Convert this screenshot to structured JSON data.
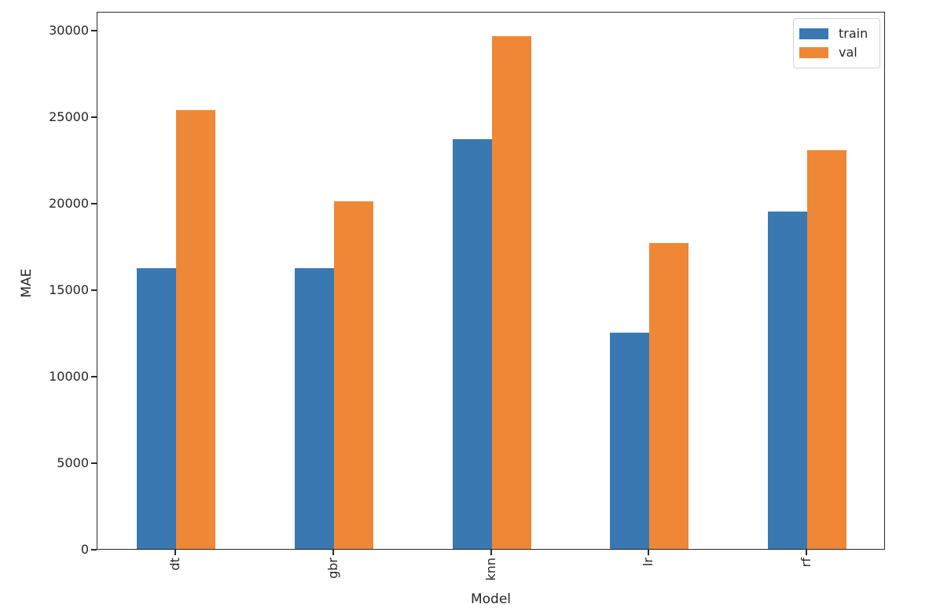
{
  "chart_data": {
    "type": "bar",
    "title": "",
    "xlabel": "Model",
    "ylabel": "MAE",
    "categories": [
      "dt",
      "gbr",
      "knn",
      "lr",
      "rf"
    ],
    "series": [
      {
        "name": "train",
        "color": "#3a78b2",
        "values": [
          16250,
          16250,
          23700,
          12500,
          19500
        ]
      },
      {
        "name": "val",
        "color": "#ee8836",
        "values": [
          25350,
          20100,
          29650,
          17700,
          23050
        ]
      }
    ],
    "ylim": [
      0,
      31100
    ],
    "yticks": [
      0,
      5000,
      10000,
      15000,
      20000,
      25000,
      30000
    ],
    "grid": false,
    "legend_position": "upper right",
    "xtick_rotation": 90,
    "axis_color": "#262626",
    "background_color": "#ffffff"
  }
}
